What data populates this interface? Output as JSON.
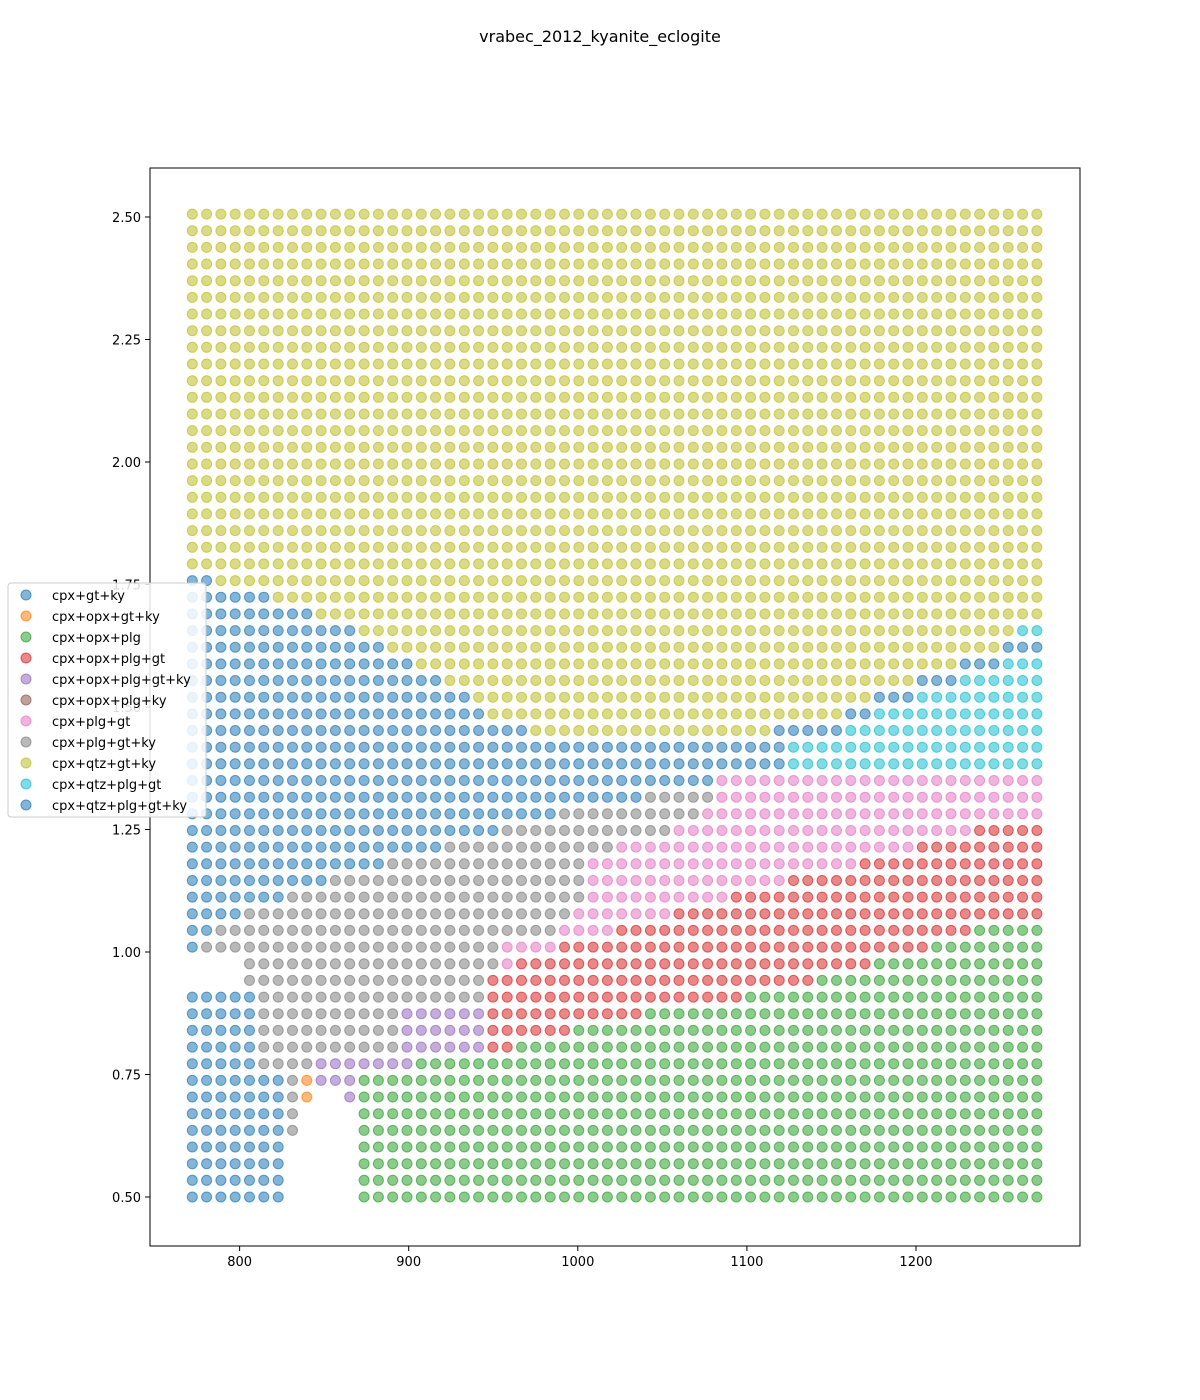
{
  "chart_data": {
    "type": "scatter",
    "title": "vrabec_2012_kyanite_eclogite",
    "xlabel": "",
    "ylabel": "",
    "xlim": [
      747,
      1297
    ],
    "ylim": [
      0.4,
      2.6
    ],
    "x_ticks": [
      800,
      900,
      1000,
      1100,
      1200
    ],
    "y_ticks": [
      0.5,
      0.75,
      1.0,
      1.25,
      1.5,
      1.75,
      2.0,
      2.25,
      2.5
    ],
    "x_tick_labels": [
      "800",
      "900",
      "1000",
      "1100",
      "1200"
    ],
    "y_tick_labels": [
      "0.50",
      "0.75",
      "1.00",
      "1.25",
      "1.50",
      "1.75",
      "2.00",
      "2.25",
      "2.50"
    ],
    "grid": false,
    "legend_position": "center-left",
    "marker_alpha": 0.55,
    "grid_sampling": {
      "x_start": 772,
      "x_step": 8.466,
      "x_count": 60,
      "y_start": 0.5,
      "y_step": 0.034,
      "y_count": 60
    },
    "series": [
      {
        "name": "cpx+gt+ky",
        "color": "#1f77b4"
      },
      {
        "name": "cpx+opx+gt+ky",
        "color": "#ff7f0e"
      },
      {
        "name": "cpx+opx+plg",
        "color": "#2ca02c"
      },
      {
        "name": "cpx+opx+plg+gt",
        "color": "#d62728"
      },
      {
        "name": "cpx+opx+plg+gt+ky",
        "color": "#9467bd"
      },
      {
        "name": "cpx+opx+plg+ky",
        "color": "#8c564b"
      },
      {
        "name": "cpx+plg+gt",
        "color": "#e377c2"
      },
      {
        "name": "cpx+plg+gt+ky",
        "color": "#7f7f7f"
      },
      {
        "name": "cpx+qtz+gt+ky",
        "color": "#bcbd22"
      },
      {
        "name": "cpx+qtz+plg+gt",
        "color": "#17becf"
      },
      {
        "name": "cpx+qtz+plg+gt+ky",
        "color": "#1f77b4"
      }
    ],
    "phase_field_boundaries": {
      "qtz_gt_ky_lower_y": [
        [
          772,
          1.77
        ],
        [
          800,
          1.74
        ],
        [
          840,
          1.7
        ],
        [
          880,
          1.64
        ],
        [
          920,
          1.56
        ],
        [
          960,
          1.46
        ],
        [
          1000,
          1.43
        ],
        [
          1080,
          1.43
        ],
        [
          1150,
          1.48
        ],
        [
          1200,
          1.56
        ],
        [
          1275,
          1.66
        ]
      ],
      "plg_gt_ky_upper_y": [
        [
          772,
          1.0
        ],
        [
          800,
          1.08
        ],
        [
          850,
          1.14
        ],
        [
          900,
          1.2
        ],
        [
          950,
          1.24
        ],
        [
          1000,
          1.29
        ],
        [
          1060,
          1.33
        ],
        [
          1100,
          1.37
        ],
        [
          1120,
          1.38
        ]
      ],
      "pure_cpx_plg_gt_left_x": [
        [
          1.0,
          950
        ],
        [
          1.05,
          990
        ],
        [
          1.1,
          1000
        ],
        [
          1.2,
          1010
        ],
        [
          1.25,
          1060
        ],
        [
          1.3,
          1080
        ]
      ],
      "opx_plg_gt_upper_y": [
        [
          950,
          0.96
        ],
        [
          1000,
          1.02
        ],
        [
          1050,
          1.07
        ],
        [
          1100,
          1.12
        ],
        [
          1150,
          1.17
        ],
        [
          1200,
          1.21
        ],
        [
          1240,
          1.26
        ],
        [
          1275,
          1.26
        ]
      ],
      "opx_plg_upper_y": [
        [
          920,
          0.78
        ],
        [
          960,
          0.8
        ],
        [
          1000,
          0.84
        ],
        [
          1050,
          0.88
        ],
        [
          1100,
          0.91
        ],
        [
          1150,
          0.95
        ],
        [
          1200,
          1.0
        ],
        [
          1240,
          1.05
        ],
        [
          1275,
          1.07
        ]
      ]
    }
  }
}
